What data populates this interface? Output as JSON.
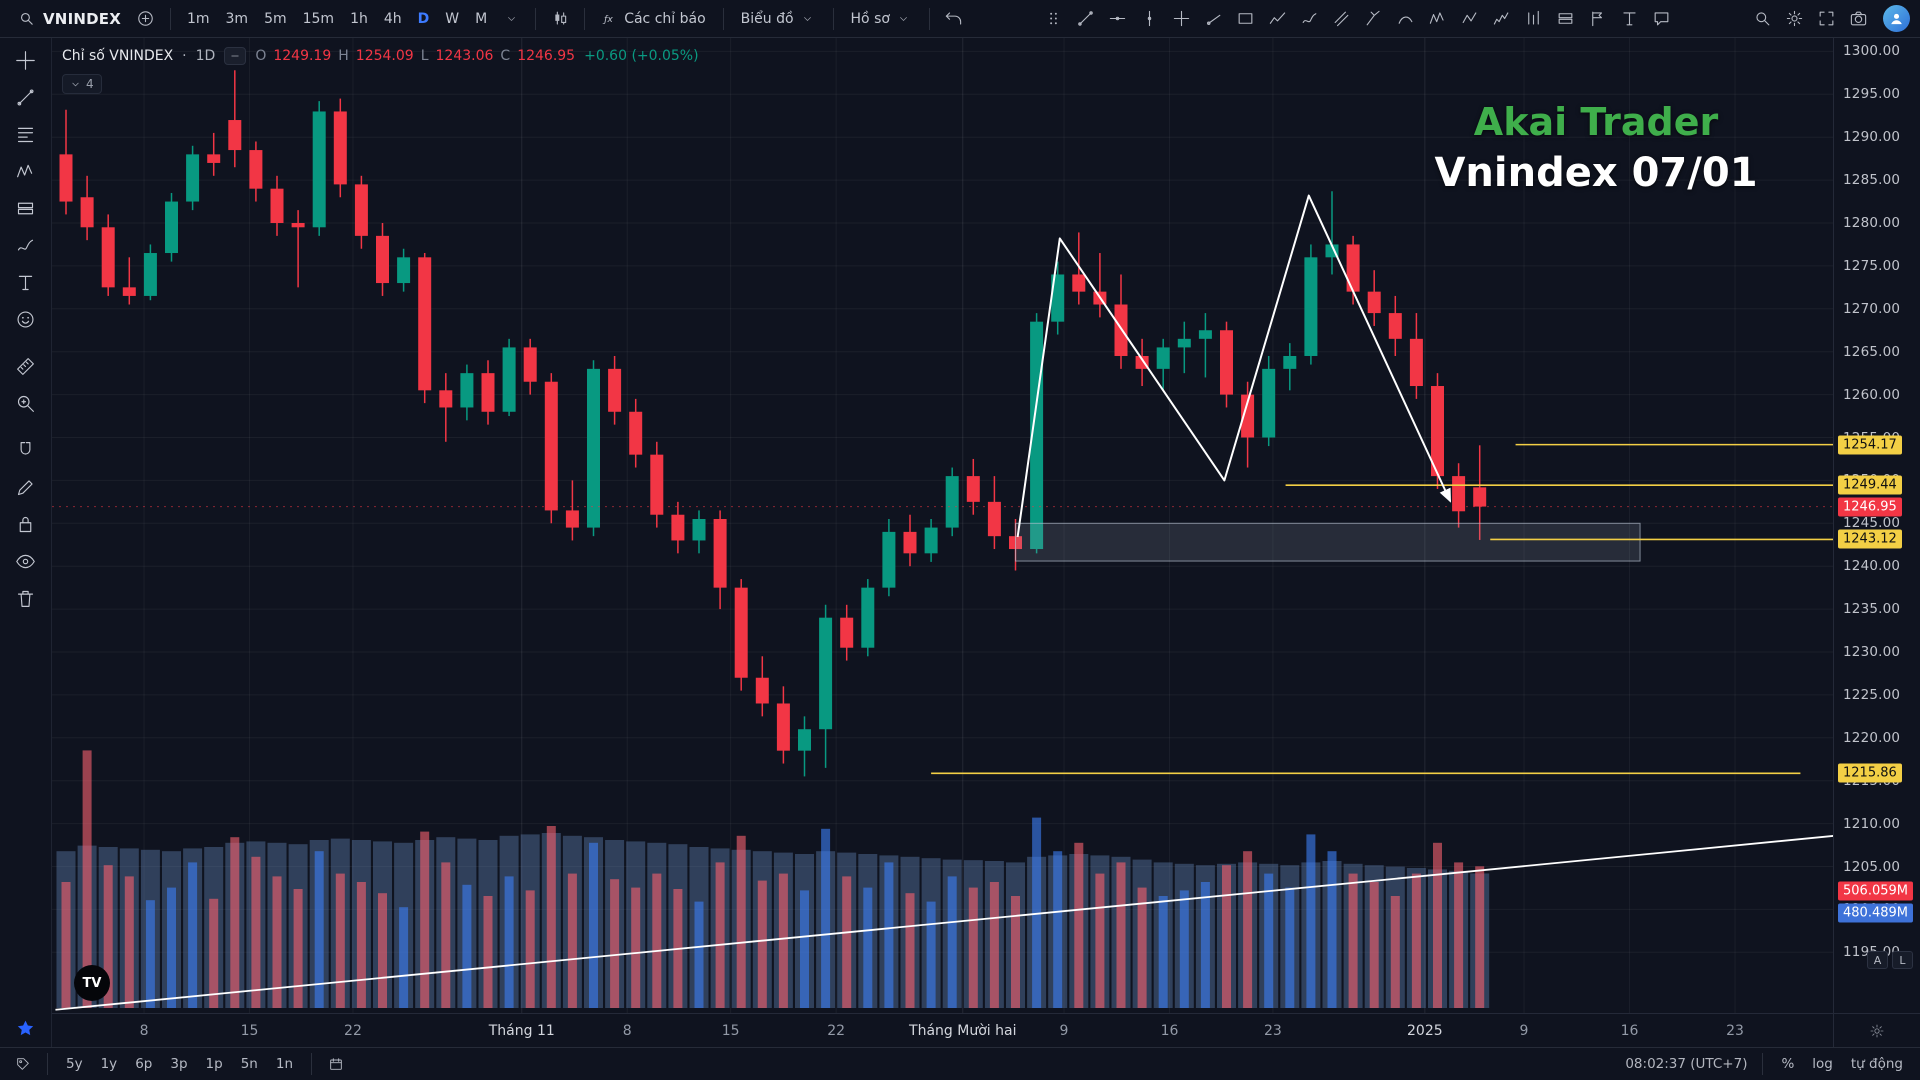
{
  "header": {
    "symbol": "VNINDEX",
    "timeframes": [
      "1m",
      "3m",
      "5m",
      "15m",
      "1h",
      "4h",
      "D",
      "W",
      "M"
    ],
    "active_timeframe": "D",
    "indicators_label": "Các chỉ báo",
    "chart_layout_label": "Biểu đồ",
    "profile_label": "Hồ sơ",
    "right_icons": [
      {
        "name": "quick-search-icon",
        "icon": "magnifier"
      },
      {
        "name": "settings-gear-icon",
        "icon": "gear"
      },
      {
        "name": "fullscreen-icon",
        "icon": "expand"
      },
      {
        "name": "screenshot-icon",
        "icon": "camera"
      }
    ]
  },
  "favorites_toolbar": {
    "tools": [
      {
        "name": "drag-handle-icon",
        "icon": "drag-handle"
      },
      {
        "name": "favorite-trendline-icon",
        "icon": "trendline"
      },
      {
        "name": "favorite-horizontal-line-icon",
        "icon": "hline"
      },
      {
        "name": "favorite-vertical-line-icon",
        "icon": "vline"
      },
      {
        "name": "favorite-cross-line-icon",
        "icon": "crossline"
      },
      {
        "name": "favorite-ray-icon",
        "icon": "ray"
      },
      {
        "name": "favorite-rectangle-icon",
        "icon": "rect-tool"
      },
      {
        "name": "favorite-polyline-icon",
        "icon": "polyline"
      },
      {
        "name": "favorite-brush-icon",
        "icon": "brush"
      },
      {
        "name": "favorite-parallel-channel-icon",
        "icon": "channel"
      },
      {
        "name": "favorite-pitchfork-icon",
        "icon": "pitchfork"
      },
      {
        "name": "favorite-curve-icon",
        "icon": "curve"
      },
      {
        "name": "favorite-xabcd-pattern-icon",
        "icon": "xabcd"
      },
      {
        "name": "favorite-abcd-pattern-icon",
        "icon": "abcd"
      },
      {
        "name": "favorite-elliott-wave-icon",
        "icon": "elliott"
      },
      {
        "name": "favorite-bars-pattern-icon",
        "icon": "bars-pattern"
      },
      {
        "name": "favorite-long-position-icon",
        "icon": "position"
      },
      {
        "name": "favorite-flag-icon",
        "icon": "flag"
      },
      {
        "name": "favorite-text-icon",
        "icon": "text-tool"
      },
      {
        "name": "favorite-callout-icon",
        "icon": "callout"
      }
    ]
  },
  "left_toolbar": {
    "tools": [
      {
        "name": "crosshair-tool-icon",
        "icon": "cursor-cross",
        "gap": false
      },
      {
        "name": "trendline-tool-icon",
        "icon": "trendline",
        "gap": false
      },
      {
        "name": "fib-tool-icon",
        "icon": "fib",
        "gap": false
      },
      {
        "name": "pattern-tool-icon",
        "icon": "xabcd",
        "gap": false
      },
      {
        "name": "position-tool-icon",
        "icon": "position",
        "gap": false
      },
      {
        "name": "brush-tool-icon",
        "icon": "brush",
        "gap": false
      },
      {
        "name": "text-tool-icon",
        "icon": "text-tool",
        "gap": false
      },
      {
        "name": "emoji-tool-icon",
        "icon": "emoji",
        "gap": false
      },
      {
        "name": "measure-tool-icon",
        "icon": "measure",
        "gap": true
      },
      {
        "name": "zoom-tool-icon",
        "icon": "zoom-in",
        "gap": false
      },
      {
        "name": "magnet-tool-icon",
        "icon": "magnet",
        "gap": true
      },
      {
        "name": "draw-mode-tool-icon",
        "icon": "pencil",
        "gap": false
      },
      {
        "name": "lock-tool-icon",
        "icon": "lock",
        "gap": false
      },
      {
        "name": "hide-tool-icon",
        "icon": "eye",
        "gap": false
      },
      {
        "name": "delete-tool-icon",
        "icon": "trash",
        "gap": false
      }
    ]
  },
  "legend": {
    "title": "Chỉ số VNINDEX",
    "dot": "·",
    "interval": "1D",
    "o_label": "O",
    "o": "1249.19",
    "h_label": "H",
    "h": "1254.09",
    "l_label": "L",
    "l": "1243.06",
    "c_label": "C",
    "c": "1246.95",
    "change": "+0.60 (+0.05%)",
    "collapsed_count": "4"
  },
  "watermark": {
    "line1": "Akai Trader",
    "line2": "Vnindex 07/01"
  },
  "tv_logo_text": "TV",
  "price_scale": {
    "mini_buttons": [
      "A",
      "L"
    ]
  },
  "footer": {
    "ranges": [
      "5y",
      "1y",
      "6p",
      "3p",
      "1p",
      "5n",
      "1n"
    ],
    "clock": "08:02:37 (UTC+7)",
    "percent_label": "%",
    "log_label": "log",
    "auto_label": "tự động"
  },
  "chart_data": {
    "type": "candlestick",
    "title": "Chỉ số VNINDEX",
    "interval": "1D",
    "last_ohlc": {
      "open": 1249.19,
      "high": 1254.09,
      "low": 1243.06,
      "close": 1246.95,
      "change": "+0.60 (+0.05%)"
    },
    "price_axis": {
      "max": 1300,
      "min": 1195,
      "step": 5
    },
    "candles": [
      [
        1288.0,
        1293.2,
        1281.0,
        1282.5
      ],
      [
        1283.0,
        1285.5,
        1278.0,
        1279.5
      ],
      [
        1279.5,
        1281.0,
        1271.5,
        1272.5
      ],
      [
        1272.5,
        1276.0,
        1270.5,
        1271.5
      ],
      [
        1271.5,
        1277.5,
        1271.0,
        1276.5
      ],
      [
        1276.5,
        1283.5,
        1275.5,
        1282.5
      ],
      [
        1282.5,
        1289.0,
        1281.5,
        1288.0
      ],
      [
        1288.0,
        1290.5,
        1285.5,
        1287.0
      ],
      [
        1292.0,
        1297.8,
        1286.5,
        1288.5
      ],
      [
        1288.5,
        1289.5,
        1282.5,
        1284.0
      ],
      [
        1284.0,
        1285.5,
        1278.5,
        1280.0
      ],
      [
        1280.0,
        1281.5,
        1272.5,
        1279.5
      ],
      [
        1279.5,
        1294.2,
        1278.5,
        1293.0
      ],
      [
        1293.0,
        1294.5,
        1283.0,
        1284.5
      ],
      [
        1284.5,
        1285.5,
        1277.0,
        1278.5
      ],
      [
        1278.5,
        1280.0,
        1271.5,
        1273.0
      ],
      [
        1273.0,
        1277.0,
        1272.0,
        1276.0
      ],
      [
        1276.0,
        1276.5,
        1259.0,
        1260.5
      ],
      [
        1260.5,
        1262.5,
        1254.5,
        1258.5
      ],
      [
        1258.5,
        1263.5,
        1257.0,
        1262.5
      ],
      [
        1262.5,
        1264.0,
        1256.5,
        1258.0
      ],
      [
        1258.0,
        1266.5,
        1257.5,
        1265.5
      ],
      [
        1265.5,
        1266.5,
        1260.0,
        1261.5
      ],
      [
        1261.5,
        1262.5,
        1245.0,
        1246.5
      ],
      [
        1246.5,
        1250.0,
        1243.0,
        1244.5
      ],
      [
        1244.5,
        1264.0,
        1243.5,
        1263.0
      ],
      [
        1263.0,
        1264.5,
        1256.5,
        1258.0
      ],
      [
        1258.0,
        1259.5,
        1251.5,
        1253.0
      ],
      [
        1253.0,
        1254.5,
        1244.5,
        1246.0
      ],
      [
        1246.0,
        1247.5,
        1241.5,
        1243.0
      ],
      [
        1243.0,
        1246.5,
        1241.5,
        1245.5
      ],
      [
        1245.5,
        1246.5,
        1235.0,
        1237.5
      ],
      [
        1237.5,
        1238.5,
        1225.5,
        1227.0
      ],
      [
        1227.0,
        1229.5,
        1222.5,
        1224.0
      ],
      [
        1224.0,
        1226.0,
        1217.0,
        1218.5
      ],
      [
        1218.5,
        1222.5,
        1215.5,
        1221.0
      ],
      [
        1221.0,
        1235.5,
        1216.5,
        1234.0
      ],
      [
        1234.0,
        1235.5,
        1229.0,
        1230.5
      ],
      [
        1230.5,
        1238.5,
        1229.5,
        1237.5
      ],
      [
        1237.5,
        1245.5,
        1236.5,
        1244.0
      ],
      [
        1244.0,
        1246.0,
        1240.0,
        1241.5
      ],
      [
        1241.5,
        1245.5,
        1240.5,
        1244.5
      ],
      [
        1244.5,
        1251.5,
        1243.5,
        1250.5
      ],
      [
        1250.5,
        1252.5,
        1246.0,
        1247.5
      ],
      [
        1247.5,
        1250.5,
        1242.0,
        1243.5
      ],
      [
        1243.5,
        1245.5,
        1239.5,
        1242.0
      ],
      [
        1242.0,
        1269.5,
        1241.5,
        1268.5
      ],
      [
        1268.5,
        1275.5,
        1267.0,
        1274.0
      ],
      [
        1274.0,
        1278.9,
        1270.5,
        1272.0
      ],
      [
        1272.0,
        1276.5,
        1269.0,
        1270.5
      ],
      [
        1270.5,
        1274.0,
        1263.0,
        1264.5
      ],
      [
        1264.5,
        1266.5,
        1261.0,
        1263.0
      ],
      [
        1263.0,
        1266.5,
        1260.5,
        1265.5
      ],
      [
        1265.5,
        1268.5,
        1262.5,
        1266.5
      ],
      [
        1266.5,
        1269.5,
        1262.0,
        1267.5
      ],
      [
        1267.5,
        1268.5,
        1258.5,
        1260.0
      ],
      [
        1260.0,
        1261.5,
        1251.5,
        1255.0
      ],
      [
        1255.0,
        1264.5,
        1254.0,
        1263.0
      ],
      [
        1263.0,
        1266.0,
        1260.5,
        1264.5
      ],
      [
        1264.5,
        1277.5,
        1263.5,
        1276.0
      ],
      [
        1276.0,
        1283.7,
        1274.0,
        1277.5
      ],
      [
        1277.5,
        1278.5,
        1270.5,
        1272.0
      ],
      [
        1272.0,
        1274.5,
        1268.0,
        1269.5
      ],
      [
        1269.5,
        1271.5,
        1264.5,
        1266.5
      ],
      [
        1266.5,
        1269.5,
        1259.5,
        1261.0
      ],
      [
        1261.0,
        1262.5,
        1249.0,
        1250.5
      ],
      [
        1250.5,
        1252.0,
        1244.5,
        1246.4
      ],
      [
        1249.19,
        1254.09,
        1243.06,
        1246.95
      ]
    ],
    "volumes_m": [
      450,
      920,
      510,
      470,
      385,
      430,
      520,
      390,
      610,
      540,
      470,
      425,
      560,
      480,
      450,
      410,
      360,
      630,
      520,
      440,
      400,
      470,
      420,
      650,
      480,
      590,
      460,
      430,
      480,
      425,
      380,
      520,
      615,
      455,
      480,
      420,
      640,
      470,
      430,
      520,
      410,
      380,
      470,
      430,
      450,
      400,
      680,
      560,
      590,
      480,
      520,
      430,
      400,
      420,
      450,
      510,
      560,
      480,
      430,
      620,
      560,
      480,
      450,
      400,
      480,
      590,
      520,
      506.059
    ],
    "value_area_m": [
      560,
      580,
      575,
      570,
      565,
      560,
      570,
      575,
      590,
      595,
      590,
      585,
      600,
      605,
      600,
      595,
      590,
      600,
      610,
      605,
      600,
      615,
      620,
      625,
      615,
      610,
      600,
      595,
      590,
      585,
      575,
      570,
      565,
      560,
      555,
      550,
      560,
      555,
      550,
      545,
      540,
      535,
      530,
      528,
      525,
      520,
      540,
      545,
      550,
      545,
      540,
      530,
      520,
      515,
      510,
      515,
      520,
      515,
      510,
      520,
      525,
      515,
      510,
      505,
      500,
      495,
      490,
      480.489
    ],
    "volume_bar_label": "506.059M",
    "volume_area_label": "480.489M",
    "time_ticks": [
      {
        "i": 3.7,
        "label": "8",
        "major": false
      },
      {
        "i": 8.7,
        "label": "15",
        "major": false
      },
      {
        "i": 13.6,
        "label": "22",
        "major": false
      },
      {
        "i": 21.6,
        "label": "Tháng 11",
        "major": true
      },
      {
        "i": 26.6,
        "label": "8",
        "major": false
      },
      {
        "i": 31.5,
        "label": "15",
        "major": false
      },
      {
        "i": 36.5,
        "label": "22",
        "major": false
      },
      {
        "i": 42.5,
        "label": "Tháng Mười hai",
        "major": true
      },
      {
        "i": 47.3,
        "label": "9",
        "major": false
      },
      {
        "i": 52.3,
        "label": "16",
        "major": false
      },
      {
        "i": 57.2,
        "label": "23",
        "major": false
      },
      {
        "i": 64.4,
        "label": "2025",
        "major": true
      },
      {
        "i": 69.1,
        "label": "9",
        "major": false
      },
      {
        "i": 74.1,
        "label": "16",
        "major": false
      },
      {
        "i": 79.1,
        "label": "23",
        "major": false
      }
    ],
    "levels": [
      {
        "price": 1254.17,
        "label": "1254.17",
        "from_i": 68.7,
        "to_i": null
      },
      {
        "price": 1249.44,
        "label": "1249.44",
        "from_i": 57.8,
        "to_i": null
      },
      {
        "price": 1243.12,
        "label": "1243.12",
        "from_i": 67.5,
        "to_i": null
      },
      {
        "price": 1215.86,
        "label": "1215.86",
        "from_i": 41.0,
        "to_i": 82.2
      }
    ],
    "box": {
      "from_i": 45.0,
      "to_i": 74.6,
      "top_price": 1245.0,
      "bottom_price": 1240.6
    },
    "zigzag": [
      {
        "i": 45.1,
        "price": 1243.4
      },
      {
        "i": 47.1,
        "price": 1278.2
      },
      {
        "i": 54.9,
        "price": 1250.0
      },
      {
        "i": 58.9,
        "price": 1283.2
      },
      {
        "i": 65.6,
        "price": 1247.6
      }
    ],
    "trendline": {
      "from_i": -0.5,
      "from_price": 1188.3,
      "to_i": 83.9,
      "to_price": 1208.6
    },
    "colors": {
      "up": "#089981",
      "down": "#f23645",
      "level": "#f3cf45",
      "drawing": "#ffffff",
      "current": "#f23645",
      "vol_up": "#3b7df0",
      "vol_down": "#f1606d",
      "vol_area": "#5f7fae",
      "level_label_bg": "#f3cf45",
      "vol_bar_label_bg": "#f23645",
      "vol_area_label_bg": "#3e72d9"
    }
  }
}
